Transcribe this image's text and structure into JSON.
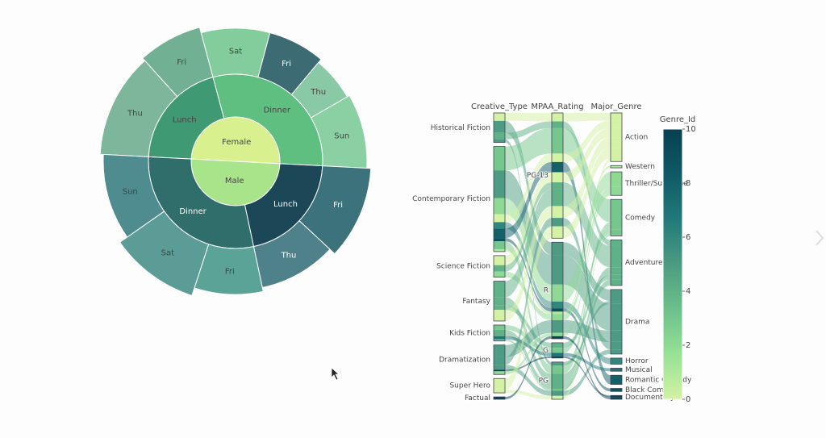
{
  "chart_data": [
    {
      "type": "sunburst",
      "nodes": [
        {
          "label": "Female",
          "parent": null,
          "value": 180,
          "color": "#d9f08f"
        },
        {
          "label": "Male",
          "parent": null,
          "value": 180,
          "color": "#a8e48a"
        },
        {
          "label": "Lunch",
          "parent": 0,
          "value": 72,
          "color": "#3f9a73"
        },
        {
          "label": "Dinner",
          "parent": 0,
          "value": 108,
          "color": "#5fbf80"
        },
        {
          "label": "Thu",
          "parent": 2,
          "value": 45,
          "color": "#7db69a",
          "height": 60
        },
        {
          "label": "Fri",
          "parent": 2,
          "value": 27,
          "color": "#72b093",
          "height": 64
        },
        {
          "label": "Sat",
          "parent": 3,
          "value": 30,
          "color": "#82cd9b",
          "height": 57
        },
        {
          "label": "Fri",
          "parent": 3,
          "value": 25,
          "color": "#3d6b74",
          "height": 57
        },
        {
          "label": "Thu",
          "parent": 3,
          "value": 20,
          "color": "#89c9a5",
          "height": 52
        },
        {
          "label": "Sun",
          "parent": 3,
          "value": 33,
          "color": "#8bd0a3",
          "height": 55
        },
        {
          "label": "Lunch",
          "parent": 1,
          "value": 75,
          "color": "#1b4756"
        },
        {
          "label": "Dinner",
          "parent": 1,
          "value": 105,
          "color": "#2f6e6a"
        },
        {
          "label": "Fri",
          "parent": 10,
          "value": 40,
          "color": "#3c727b",
          "height": 60
        },
        {
          "label": "Thu",
          "parent": 10,
          "value": 35,
          "color": "#4e8189",
          "height": 52
        },
        {
          "label": "Fri",
          "parent": 11,
          "value": 30,
          "color": "#5aa396",
          "height": 57
        },
        {
          "label": "Sat",
          "parent": 11,
          "value": 37,
          "color": "#5c9c96",
          "height": 67
        },
        {
          "label": "Sun",
          "parent": 11,
          "value": 38,
          "color": "#4f8c8f",
          "height": 56
        }
      ]
    },
    {
      "type": "parcats",
      "dimensions": [
        {
          "label": "Creative_Type",
          "categories": [
            "Historical Fiction",
            "Contemporary Fiction",
            "Science Fiction",
            "Fantasy",
            "Kids Fiction",
            "Dramatization",
            "Super Hero",
            "Factual"
          ]
        },
        {
          "label": "MPAA_Rating",
          "categories": [
            "PG-13",
            "R",
            "G",
            "PG"
          ]
        },
        {
          "label": "Major_Genre",
          "categories": [
            "Action",
            "Western",
            "Thriller/Suspense",
            "Comedy",
            "Adventure",
            "Drama",
            "Horror",
            "Musical",
            "Romantic Comedy",
            "Black Comedy",
            "Documentary"
          ]
        }
      ],
      "flows": [
        {
          "categories": [
            0,
            0,
            0
          ],
          "value": 10
        },
        {
          "categories": [
            0,
            1,
            5
          ],
          "value": 15
        },
        {
          "categories": [
            0,
            0,
            4
          ],
          "value": 8
        },
        {
          "categories": [
            0,
            3,
            5
          ],
          "value": 4
        },
        {
          "categories": [
            1,
            0,
            3
          ],
          "value": 30
        },
        {
          "categories": [
            1,
            1,
            5
          ],
          "value": 35
        },
        {
          "categories": [
            1,
            1,
            2
          ],
          "value": 20
        },
        {
          "categories": [
            1,
            0,
            0
          ],
          "value": 10
        },
        {
          "categories": [
            1,
            1,
            6
          ],
          "value": 8
        },
        {
          "categories": [
            1,
            0,
            8
          ],
          "value": 12
        },
        {
          "categories": [
            1,
            1,
            9
          ],
          "value": 4
        },
        {
          "categories": [
            1,
            3,
            3
          ],
          "value": 10
        },
        {
          "categories": [
            1,
            1,
            1
          ],
          "value": 3
        },
        {
          "categories": [
            2,
            0,
            0
          ],
          "value": 12
        },
        {
          "categories": [
            2,
            0,
            4
          ],
          "value": 8
        },
        {
          "categories": [
            2,
            1,
            2
          ],
          "value": 7
        },
        {
          "categories": [
            3,
            0,
            4
          ],
          "value": 20
        },
        {
          "categories": [
            3,
            3,
            4
          ],
          "value": 10
        },
        {
          "categories": [
            3,
            2,
            4
          ],
          "value": 6
        },
        {
          "categories": [
            3,
            0,
            0
          ],
          "value": 14
        },
        {
          "categories": [
            4,
            2,
            3
          ],
          "value": 6
        },
        {
          "categories": [
            4,
            3,
            4
          ],
          "value": 8
        },
        {
          "categories": [
            4,
            2,
            7
          ],
          "value": 4
        },
        {
          "categories": [
            4,
            3,
            3
          ],
          "value": 2
        },
        {
          "categories": [
            5,
            1,
            5
          ],
          "value": 15
        },
        {
          "categories": [
            5,
            0,
            5
          ],
          "value": 10
        },
        {
          "categories": [
            5,
            3,
            5
          ],
          "value": 6
        },
        {
          "categories": [
            5,
            2,
            10
          ],
          "value": 2
        },
        {
          "categories": [
            5,
            1,
            2
          ],
          "value": 4
        },
        {
          "categories": [
            6,
            0,
            0
          ],
          "value": 14
        },
        {
          "categories": [
            6,
            3,
            0
          ],
          "value": 4
        },
        {
          "categories": [
            7,
            1,
            10
          ],
          "value": 3
        }
      ],
      "colorbar": {
        "title": "Genre_Id",
        "range": [
          0,
          10
        ],
        "ticks": [
          0,
          2,
          4,
          6,
          8,
          10
        ],
        "colorscale": [
          "#d3f2a3",
          "#97e196",
          "#6cc08b",
          "#4c9b82",
          "#217a79",
          "#105965",
          "#074050"
        ]
      }
    }
  ]
}
